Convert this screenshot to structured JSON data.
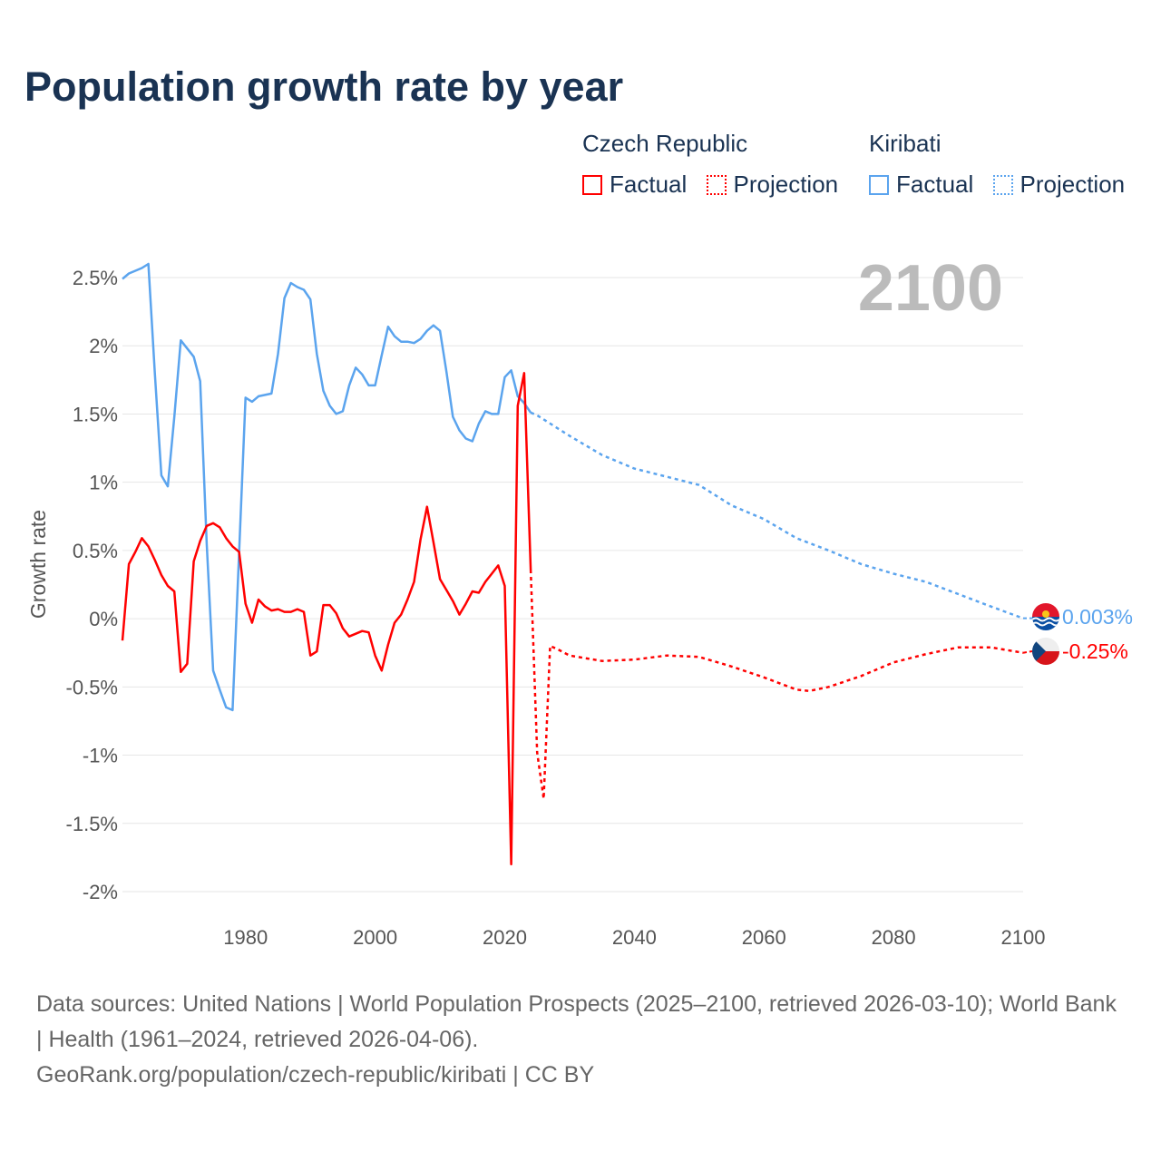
{
  "title": "Population growth rate by year",
  "legend": {
    "groups": [
      {
        "name": "Czech Republic",
        "color": "#ff0000",
        "factual_label": "Factual",
        "projection_label": "Projection"
      },
      {
        "name": "Kiribati",
        "color": "#5ba4ee",
        "factual_label": "Factual",
        "projection_label": "Projection"
      }
    ]
  },
  "year_label": "2100",
  "end_labels": {
    "kiribati": "0.003%",
    "czech": "-0.25%"
  },
  "footer": {
    "line1": "Data sources: United Nations | World Population Prospects (2025–2100, retrieved 2026-03-10); World Bank | Health (1961–2024, retrieved 2026-04-06).",
    "line2": "GeoRank.org/population/czech-republic/kiribati | CC BY"
  },
  "chart_data": {
    "type": "line",
    "title": "Population growth rate by year",
    "xlabel": "",
    "ylabel": "Growth rate",
    "xlim": [
      1961,
      2100
    ],
    "ylim": [
      -2,
      2.5
    ],
    "x_ticks": [
      1980,
      2000,
      2020,
      2040,
      2060,
      2080,
      2100
    ],
    "x_tick_labels": [
      "1980",
      "2000",
      "2020",
      "2040",
      "2060",
      "2080",
      "2100"
    ],
    "y_ticks": [
      2.5,
      2,
      1.5,
      1,
      0.5,
      0,
      -0.5,
      -1,
      -1.5,
      -2
    ],
    "y_tick_labels": [
      "2.5%",
      "2%",
      "1.5%",
      "1%",
      "0.5%",
      "0%",
      "-0.5%",
      "-1%",
      "-1.5%",
      "-2%"
    ],
    "grid": true,
    "legend_position": "top-right",
    "series": [
      {
        "name": "Kiribati Factual",
        "color": "#5ba4ee",
        "style": "solid",
        "x": [
          1961,
          1962,
          1963,
          1964,
          1965,
          1966,
          1967,
          1968,
          1969,
          1970,
          1971,
          1972,
          1973,
          1974,
          1975,
          1976,
          1977,
          1978,
          1979,
          1980,
          1981,
          1982,
          1983,
          1984,
          1985,
          1986,
          1987,
          1988,
          1989,
          1990,
          1991,
          1992,
          1993,
          1994,
          1995,
          1996,
          1997,
          1998,
          1999,
          2000,
          2001,
          2002,
          2003,
          2004,
          2005,
          2006,
          2007,
          2008,
          2009,
          2010,
          2011,
          2012,
          2013,
          2014,
          2015,
          2016,
          2017,
          2018,
          2019,
          2020,
          2021,
          2022,
          2023,
          2024
        ],
        "y": [
          2.49,
          2.53,
          2.55,
          2.57,
          2.6,
          1.8,
          1.05,
          0.97,
          1.48,
          2.04,
          1.98,
          1.92,
          1.74,
          0.55,
          -0.38,
          -0.52,
          -0.65,
          -0.67,
          0.48,
          1.62,
          1.59,
          1.63,
          1.64,
          1.65,
          1.94,
          2.35,
          2.46,
          2.43,
          2.41,
          2.34,
          1.94,
          1.67,
          1.56,
          1.5,
          1.52,
          1.71,
          1.84,
          1.79,
          1.71,
          1.71,
          1.93,
          2.14,
          2.07,
          2.03,
          2.03,
          2.02,
          2.05,
          2.11,
          2.15,
          2.11,
          1.81,
          1.48,
          1.38,
          1.32,
          1.3,
          1.43,
          1.52,
          1.5,
          1.5,
          1.77,
          1.82,
          1.63,
          1.58,
          1.51
        ]
      },
      {
        "name": "Kiribati Projection",
        "color": "#5ba4ee",
        "style": "dotted",
        "x": [
          2024,
          2025,
          2030,
          2035,
          2040,
          2045,
          2050,
          2055,
          2060,
          2065,
          2070,
          2075,
          2080,
          2085,
          2090,
          2095,
          2100
        ],
        "y": [
          1.51,
          1.49,
          1.34,
          1.2,
          1.1,
          1.04,
          0.98,
          0.83,
          0.73,
          0.59,
          0.5,
          0.4,
          0.33,
          0.27,
          0.18,
          0.09,
          0.003
        ]
      },
      {
        "name": "Czech Republic Factual",
        "color": "#ff0000",
        "style": "solid",
        "x": [
          1961,
          1962,
          1963,
          1964,
          1965,
          1966,
          1967,
          1968,
          1969,
          1970,
          1971,
          1972,
          1973,
          1974,
          1975,
          1976,
          1977,
          1978,
          1979,
          1980,
          1981,
          1982,
          1983,
          1984,
          1985,
          1986,
          1987,
          1988,
          1989,
          1990,
          1991,
          1992,
          1993,
          1994,
          1995,
          1996,
          1997,
          1998,
          1999,
          2000,
          2001,
          2002,
          2003,
          2004,
          2005,
          2006,
          2007,
          2008,
          2009,
          2010,
          2011,
          2012,
          2013,
          2014,
          2015,
          2016,
          2017,
          2018,
          2019,
          2020,
          2021,
          2022,
          2023,
          2024
        ],
        "y": [
          -0.16,
          0.4,
          0.49,
          0.59,
          0.53,
          0.43,
          0.32,
          0.24,
          0.2,
          -0.39,
          -0.33,
          0.42,
          0.57,
          0.68,
          0.7,
          0.67,
          0.59,
          0.53,
          0.49,
          0.11,
          -0.03,
          0.14,
          0.09,
          0.06,
          0.07,
          0.05,
          0.05,
          0.07,
          0.05,
          -0.27,
          -0.24,
          0.1,
          0.1,
          0.04,
          -0.07,
          -0.13,
          -0.11,
          -0.09,
          -0.1,
          -0.27,
          -0.38,
          -0.19,
          -0.03,
          0.03,
          0.14,
          0.27,
          0.58,
          0.82,
          0.56,
          0.29,
          0.21,
          0.13,
          0.03,
          0.11,
          0.2,
          0.19,
          0.27,
          0.33,
          0.39,
          0.24,
          -1.8,
          1.56,
          1.8,
          0.36
        ]
      },
      {
        "name": "Czech Republic Projection",
        "color": "#ff0000",
        "style": "dotted",
        "x": [
          2024,
          2025,
          2026,
          2027,
          2028,
          2030,
          2035,
          2040,
          2045,
          2050,
          2055,
          2060,
          2065,
          2067,
          2070,
          2075,
          2080,
          2085,
          2090,
          2095,
          2100
        ],
        "y": [
          0.36,
          -0.98,
          -1.32,
          -0.2,
          -0.22,
          -0.27,
          -0.31,
          -0.3,
          -0.27,
          -0.28,
          -0.35,
          -0.43,
          -0.52,
          -0.53,
          -0.5,
          -0.42,
          -0.32,
          -0.26,
          -0.21,
          -0.21,
          -0.25
        ]
      }
    ]
  }
}
